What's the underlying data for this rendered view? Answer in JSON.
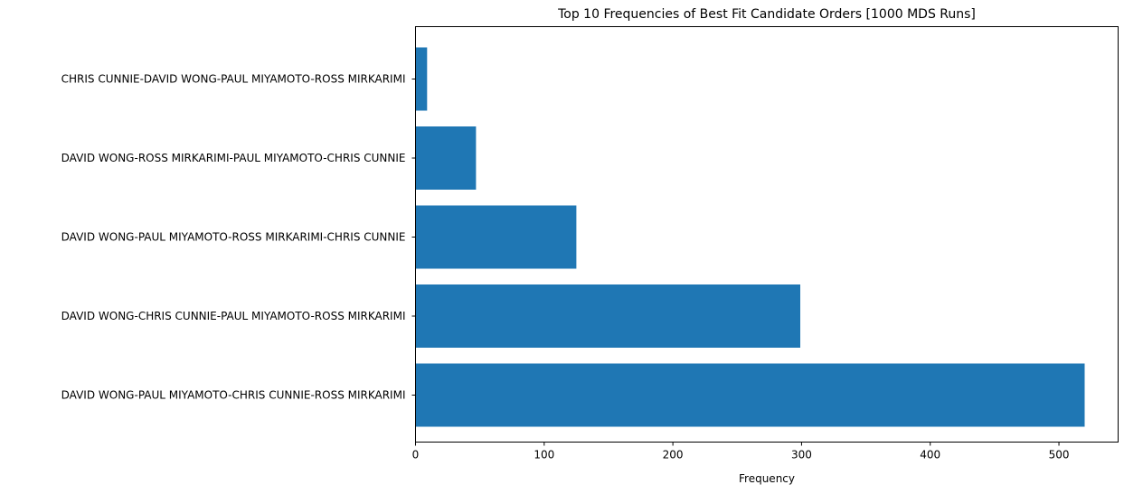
{
  "chart_data": {
    "type": "bar",
    "orientation": "horizontal",
    "title": "Top 10 Frequencies of Best Fit Candidate Orders [1000 MDS Runs]",
    "xlabel": "Frequency",
    "ylabel": "",
    "categories": [
      "DAVID WONG-PAUL MIYAMOTO-CHRIS CUNNIE-ROSS MIRKARIMI",
      "DAVID WONG-CHRIS CUNNIE-PAUL MIYAMOTO-ROSS MIRKARIMI",
      "DAVID WONG-PAUL MIYAMOTO-ROSS MIRKARIMI-CHRIS CUNNIE",
      "DAVID WONG-ROSS MIRKARIMI-PAUL MIYAMOTO-CHRIS CUNNIE",
      "CHRIS CUNNIE-DAVID WONG-PAUL MIYAMOTO-ROSS MIRKARIMI"
    ],
    "values": [
      520,
      299,
      125,
      47,
      9
    ],
    "xlim": [
      0,
      546
    ],
    "xticks": [
      0,
      100,
      200,
      300,
      400,
      500
    ],
    "bar_color": "#1f77b4",
    "grid": false,
    "legend": "none"
  }
}
